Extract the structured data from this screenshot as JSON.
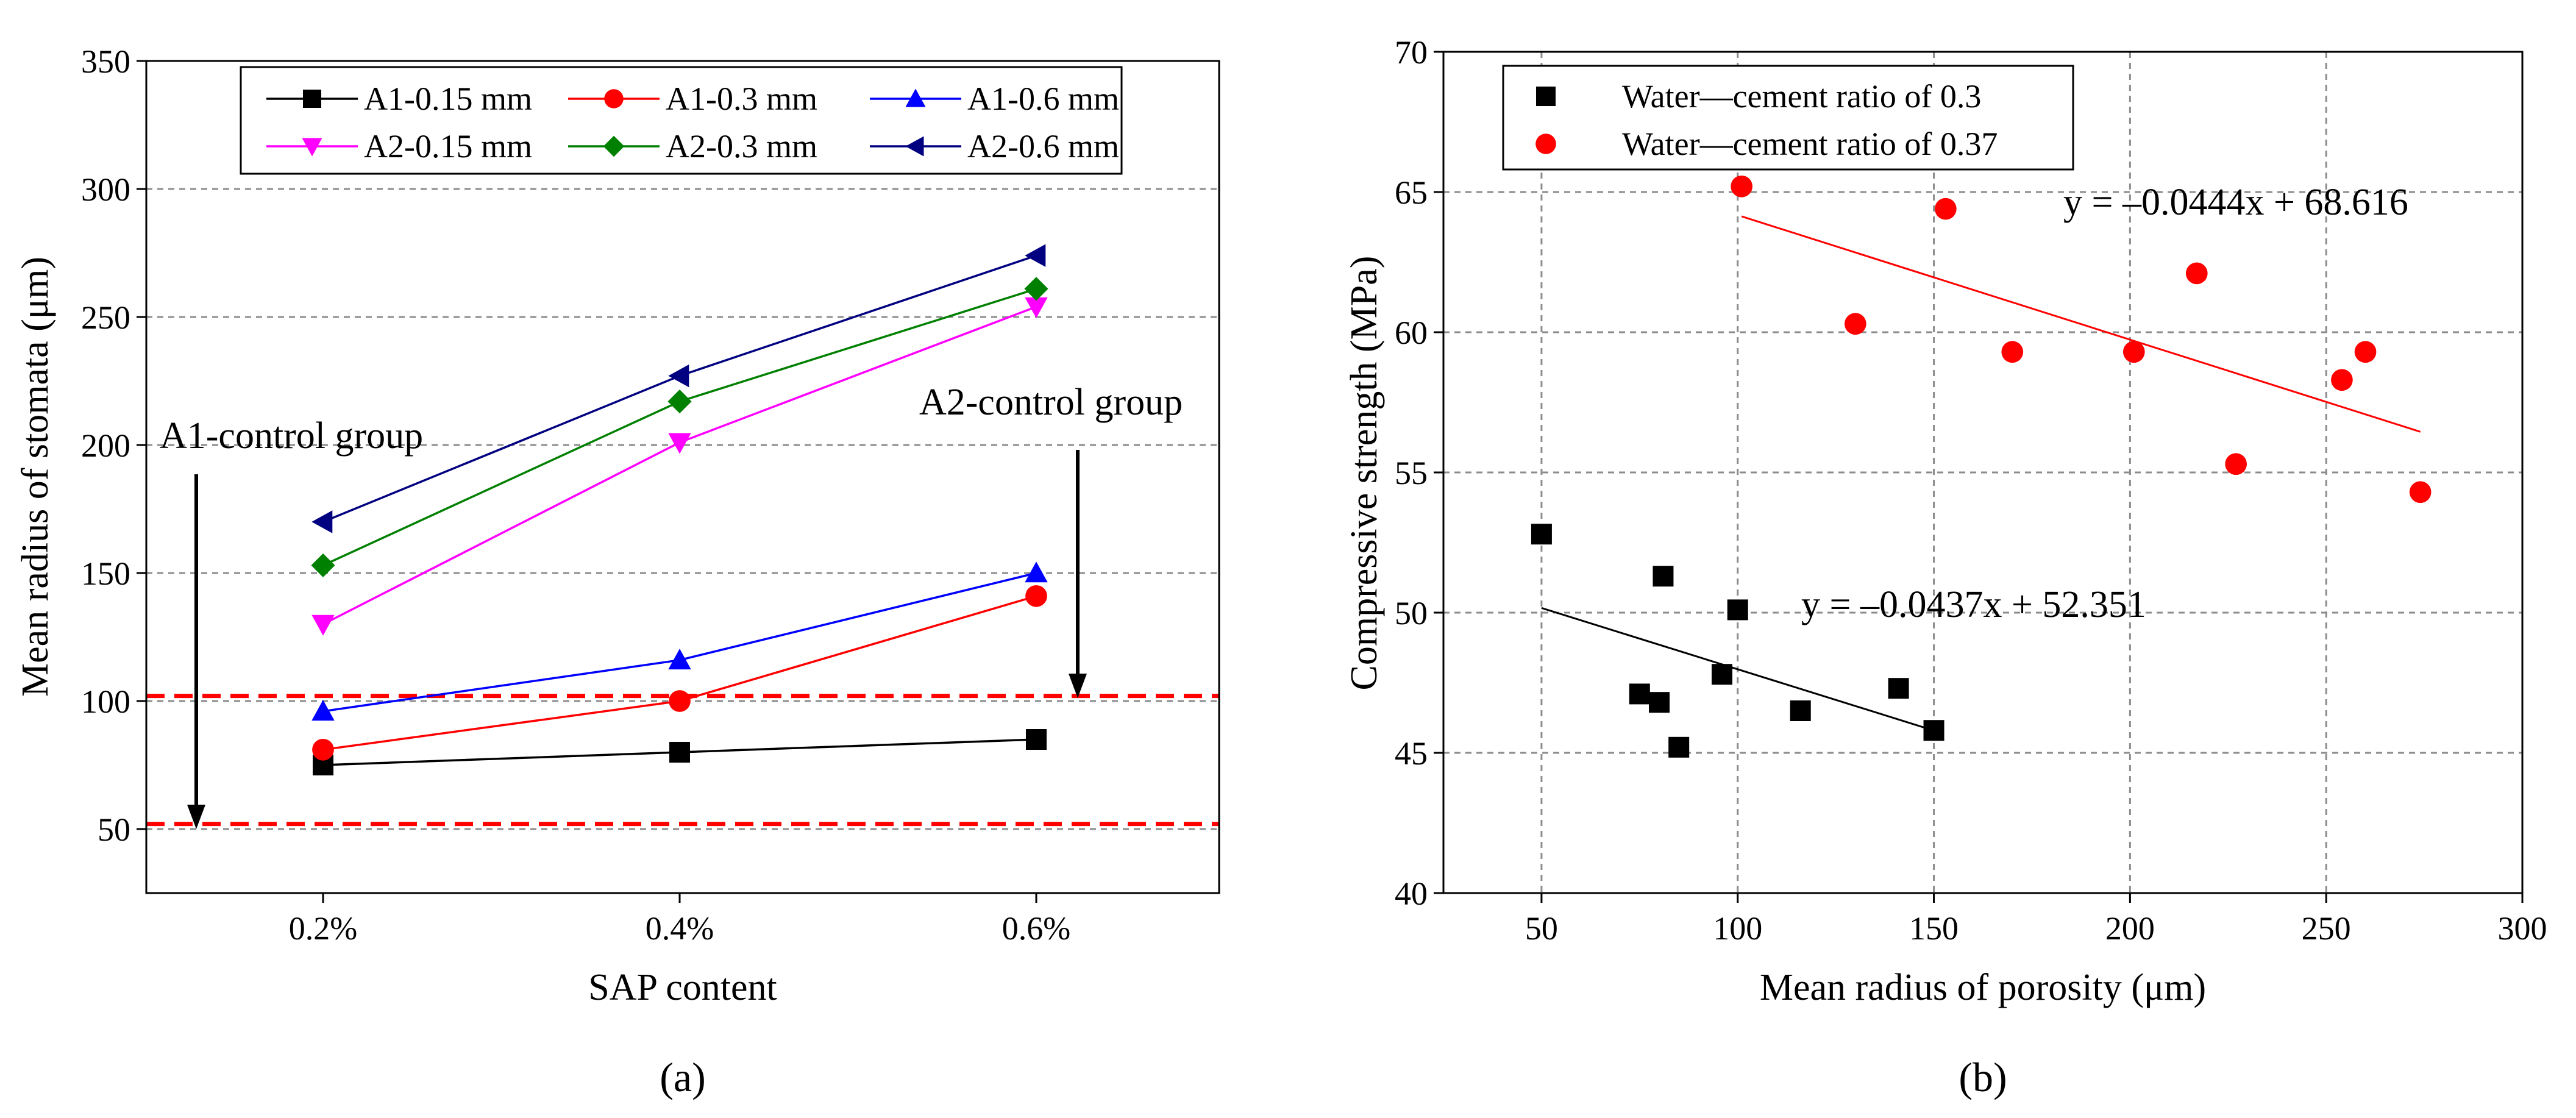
{
  "chart_data": [
    {
      "type": "line",
      "panel": "a",
      "xlabel": "SAP content",
      "ylabel": "Mean radius of stomata (μm)",
      "categories": [
        "0.2%",
        "0.4%",
        "0.6%"
      ],
      "ylim": [
        25,
        350
      ],
      "yticks": [
        50,
        100,
        150,
        200,
        250,
        300,
        350
      ],
      "grid": true,
      "legend": "top",
      "series": [
        {
          "name": "A1-0.15 mm",
          "color": "#000000",
          "marker": "square",
          "values": [
            75,
            80,
            85
          ]
        },
        {
          "name": "A1-0.3 mm",
          "color": "#ff0000",
          "marker": "circle",
          "values": [
            81,
            100,
            141
          ]
        },
        {
          "name": "A1-0.6 mm",
          "color": "#0000ff",
          "marker": "triangle-up",
          "values": [
            96,
            116,
            150
          ]
        },
        {
          "name": "A2-0.15 mm",
          "color": "#ff00ff",
          "marker": "triangle-down",
          "values": [
            130,
            201,
            254
          ]
        },
        {
          "name": "A2-0.3 mm",
          "color": "#008000",
          "marker": "diamond",
          "values": [
            153,
            217,
            261
          ]
        },
        {
          "name": "A2-0.6 mm",
          "color": "#000080",
          "marker": "triangle-left",
          "values": [
            170,
            227,
            274
          ]
        }
      ],
      "reference_lines": [
        {
          "y": 102,
          "color": "#ff0000",
          "style": "dashed"
        },
        {
          "y": 52,
          "color": "#ff0000",
          "style": "dashed"
        }
      ],
      "annotations": {
        "a1": {
          "text": "A1-control group",
          "arrow_to": 52
        },
        "a2": {
          "text": "A2-control group",
          "arrow_to": 102
        }
      }
    },
    {
      "type": "scatter",
      "panel": "b",
      "xlabel": "Mean radius of porosity (μm)",
      "ylabel": "Compressive strength (MPa)",
      "xlim": [
        25,
        300
      ],
      "ylim": [
        40,
        70
      ],
      "xticks": [
        50,
        100,
        150,
        200,
        250,
        300
      ],
      "yticks": [
        40,
        45,
        50,
        55,
        60,
        65,
        70
      ],
      "grid": true,
      "legend": "top-left",
      "series": [
        {
          "name": "Water—cement ratio of 0.3",
          "color": "#000000",
          "marker": "square",
          "points": [
            [
              50,
              52.8
            ],
            [
              75,
              47.1
            ],
            [
              80,
              46.8
            ],
            [
              81,
              51.3
            ],
            [
              85,
              45.2
            ],
            [
              96,
              47.8
            ],
            [
              100,
              50.1
            ],
            [
              116,
              46.5
            ],
            [
              141,
              47.3
            ],
            [
              150,
              45.8
            ]
          ],
          "fit": {
            "label": "y = –0.0437x + 52.351",
            "slope": -0.0437,
            "intercept": 52.351,
            "x_range": [
              50,
              150
            ]
          }
        },
        {
          "name": "Water—cement ratio of 0.37",
          "color": "#ff0000",
          "marker": "circle",
          "points": [
            [
              101,
              65.2
            ],
            [
              130,
              60.3
            ],
            [
              153,
              64.4
            ],
            [
              170,
              59.3
            ],
            [
              201,
              59.3
            ],
            [
              217,
              62.1
            ],
            [
              227,
              55.3
            ],
            [
              254,
              58.3
            ],
            [
              260,
              59.3
            ],
            [
              274,
              54.3
            ]
          ],
          "fit": {
            "label": "y = –0.0444x + 68.616",
            "slope": -0.0444,
            "intercept": 68.616,
            "x_range": [
              101,
              274
            ]
          }
        }
      ]
    }
  ],
  "captions": {
    "a": "(a)",
    "b": "(b)"
  }
}
